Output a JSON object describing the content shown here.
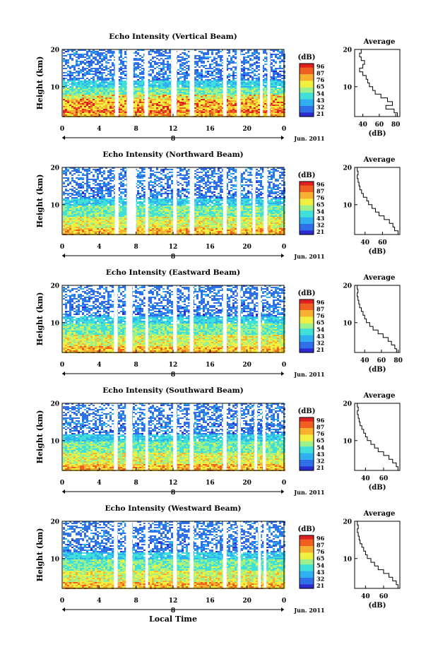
{
  "xaxis_label": "Local Time",
  "date_label": "Jun. 2011",
  "day_marker": "8",
  "height_label": "Height (km)",
  "colorbar_unit": "(dB)",
  "colorbar_ticks": [
    "96",
    "87",
    "76",
    "65",
    "54",
    "43",
    "32",
    "21"
  ],
  "colormap": [
    "#2b2bd0",
    "#2f6fe8",
    "#2fb0f0",
    "#3fe0d8",
    "#9ef08a",
    "#f0f040",
    "#f8b030",
    "#f06020",
    "#e02020"
  ],
  "chart_data": [
    {
      "type": "heatmap",
      "title": "Echo Intensity (Vertical Beam)",
      "xlabel": "",
      "ylabel": "Height (km)",
      "xlim": [
        0,
        24
      ],
      "xticks": [
        "0",
        "4",
        "8",
        "12",
        "16",
        "20",
        "0"
      ],
      "ylim": [
        2,
        20
      ],
      "yticks": [
        "20",
        "10"
      ],
      "zlim": [
        21,
        96
      ],
      "gaps_hours": [
        [
          5.7,
          6.1
        ],
        [
          7.0,
          7.7
        ],
        [
          8.9,
          9.3
        ],
        [
          11.8,
          12.4
        ],
        [
          13.8,
          14.3
        ],
        [
          17.4,
          17.8
        ],
        [
          18.9,
          19.3
        ],
        [
          21.4,
          21.7
        ],
        [
          22.2,
          22.5
        ]
      ],
      "profile": {
        "title": "Average",
        "xlabel": "(dB)",
        "xlim": [
          30,
          85
        ],
        "xticks": [
          "40",
          "60",
          "80"
        ],
        "ylim": [
          2,
          20
        ],
        "yticks": [
          "20",
          "10"
        ],
        "height_km": [
          2,
          3,
          4,
          5,
          6,
          7,
          8,
          9,
          10,
          11,
          12,
          13,
          14,
          15,
          16,
          17,
          18,
          19,
          20
        ],
        "db": [
          82,
          78,
          68,
          76,
          70,
          62,
          55,
          52,
          48,
          46,
          44,
          40,
          36,
          40,
          42,
          38,
          36,
          38,
          36
        ]
      }
    },
    {
      "type": "heatmap",
      "title": "Echo Intensity (Northward Beam)",
      "xlabel": "",
      "ylabel": "Height (km)",
      "xlim": [
        0,
        24
      ],
      "xticks": [
        "0",
        "4",
        "8",
        "12",
        "16",
        "20",
        "0"
      ],
      "ylim": [
        2,
        20
      ],
      "yticks": [
        "20",
        "10"
      ],
      "zlim": [
        21,
        96
      ],
      "gaps_hours": [
        [
          5.7,
          6.1
        ],
        [
          7.0,
          8.0
        ],
        [
          9.0,
          9.3
        ],
        [
          12.0,
          12.4
        ],
        [
          13.8,
          14.3
        ],
        [
          17.4,
          17.8
        ],
        [
          18.9,
          19.3
        ],
        [
          20.6,
          20.9
        ],
        [
          21.8,
          22.2
        ]
      ],
      "profile": {
        "title": "Average",
        "xlabel": "(dB)",
        "xlim": [
          28,
          80
        ],
        "xticks": [
          "40",
          "60"
        ],
        "ylim": [
          2,
          20
        ],
        "yticks": [
          "20",
          "10"
        ],
        "height_km": [
          2,
          3,
          4,
          5,
          6,
          7,
          8,
          9,
          10,
          11,
          12,
          13,
          14,
          15,
          16,
          17,
          18,
          19,
          20
        ],
        "db": [
          78,
          74,
          72,
          68,
          62,
          56,
          52,
          48,
          44,
          42,
          38,
          36,
          34,
          33,
          32,
          31,
          32,
          31,
          30
        ]
      }
    },
    {
      "type": "heatmap",
      "title": "Echo Intensity (Eastward Beam)",
      "xlabel": "",
      "ylabel": "Height (km)",
      "xlim": [
        0,
        24
      ],
      "xticks": [
        "0",
        "4",
        "8",
        "12",
        "16",
        "20",
        "0"
      ],
      "ylim": [
        2,
        20
      ],
      "yticks": [
        "20",
        "10"
      ],
      "zlim": [
        21,
        96
      ],
      "gaps_hours": [
        [
          5.6,
          6.0
        ],
        [
          6.9,
          7.6
        ],
        [
          9.0,
          9.3
        ],
        [
          12.0,
          12.4
        ],
        [
          13.8,
          14.2
        ],
        [
          17.4,
          17.8
        ],
        [
          19.0,
          19.3
        ],
        [
          21.2,
          21.5
        ]
      ],
      "profile": {
        "title": "Average",
        "xlabel": "(dB)",
        "xlim": [
          28,
          82
        ],
        "xticks": [
          "40",
          "60",
          "80"
        ],
        "ylim": [
          2,
          20
        ],
        "yticks": [
          "20",
          "10"
        ],
        "height_km": [
          2,
          3,
          4,
          5,
          6,
          7,
          8,
          9,
          10,
          11,
          12,
          13,
          14,
          15,
          16,
          17,
          18,
          19,
          20
        ],
        "db": [
          78,
          76,
          72,
          68,
          62,
          56,
          50,
          46,
          42,
          40,
          38,
          36,
          34,
          33,
          32,
          31,
          32,
          31,
          30
        ]
      }
    },
    {
      "type": "heatmap",
      "title": "Echo Intensity (Southward Beam)",
      "xlabel": "",
      "ylabel": "Height (km)",
      "xlim": [
        0,
        24
      ],
      "xticks": [
        "0",
        "4",
        "8",
        "12",
        "16",
        "20",
        "0"
      ],
      "ylim": [
        2,
        20
      ],
      "yticks": [
        "20",
        "10"
      ],
      "zlim": [
        21,
        96
      ],
      "gaps_hours": [
        [
          5.6,
          6.0
        ],
        [
          6.9,
          7.6
        ],
        [
          9.0,
          9.3
        ],
        [
          12.0,
          12.4
        ],
        [
          13.8,
          14.2
        ],
        [
          17.4,
          17.8
        ],
        [
          19.0,
          19.3
        ],
        [
          20.8,
          21.1
        ],
        [
          21.7,
          22.0
        ]
      ],
      "profile": {
        "title": "Average",
        "xlabel": "(dB)",
        "xlim": [
          28,
          78
        ],
        "xticks": [
          "40",
          "60"
        ],
        "ylim": [
          2,
          20
        ],
        "yticks": [
          "20",
          "10"
        ],
        "height_km": [
          2,
          3,
          4,
          5,
          6,
          7,
          8,
          9,
          10,
          11,
          12,
          13,
          14,
          15,
          16,
          17,
          18,
          19,
          20
        ],
        "db": [
          76,
          74,
          70,
          66,
          60,
          54,
          50,
          46,
          42,
          40,
          38,
          36,
          34,
          33,
          32,
          31,
          32,
          31,
          30
        ]
      }
    },
    {
      "type": "heatmap",
      "title": "Echo Intensity (Westward Beam)",
      "xlabel": "Local Time",
      "ylabel": "Height (km)",
      "xlim": [
        0,
        24
      ],
      "xticks": [
        "0",
        "4",
        "8",
        "12",
        "16",
        "20",
        "0"
      ],
      "ylim": [
        2,
        20
      ],
      "yticks": [
        "20",
        "10"
      ],
      "zlim": [
        21,
        96
      ],
      "gaps_hours": [
        [
          5.6,
          6.0
        ],
        [
          6.9,
          7.6
        ],
        [
          9.0,
          9.3
        ],
        [
          12.0,
          12.4
        ],
        [
          13.8,
          14.2
        ],
        [
          17.4,
          17.8
        ],
        [
          19.0,
          19.3
        ],
        [
          21.2,
          21.5
        ],
        [
          21.8,
          22.1
        ]
      ],
      "profile": {
        "title": "Average",
        "xlabel": "(dB)",
        "xlim": [
          28,
          78
        ],
        "xticks": [
          "40",
          "60"
        ],
        "ylim": [
          2,
          20
        ],
        "yticks": [
          "20",
          "10"
        ],
        "height_km": [
          2,
          3,
          4,
          5,
          6,
          7,
          8,
          9,
          10,
          11,
          12,
          13,
          14,
          15,
          16,
          17,
          18,
          19,
          20
        ],
        "db": [
          76,
          74,
          70,
          66,
          60,
          54,
          50,
          46,
          42,
          40,
          38,
          36,
          34,
          33,
          32,
          31,
          32,
          31,
          30
        ]
      }
    }
  ]
}
